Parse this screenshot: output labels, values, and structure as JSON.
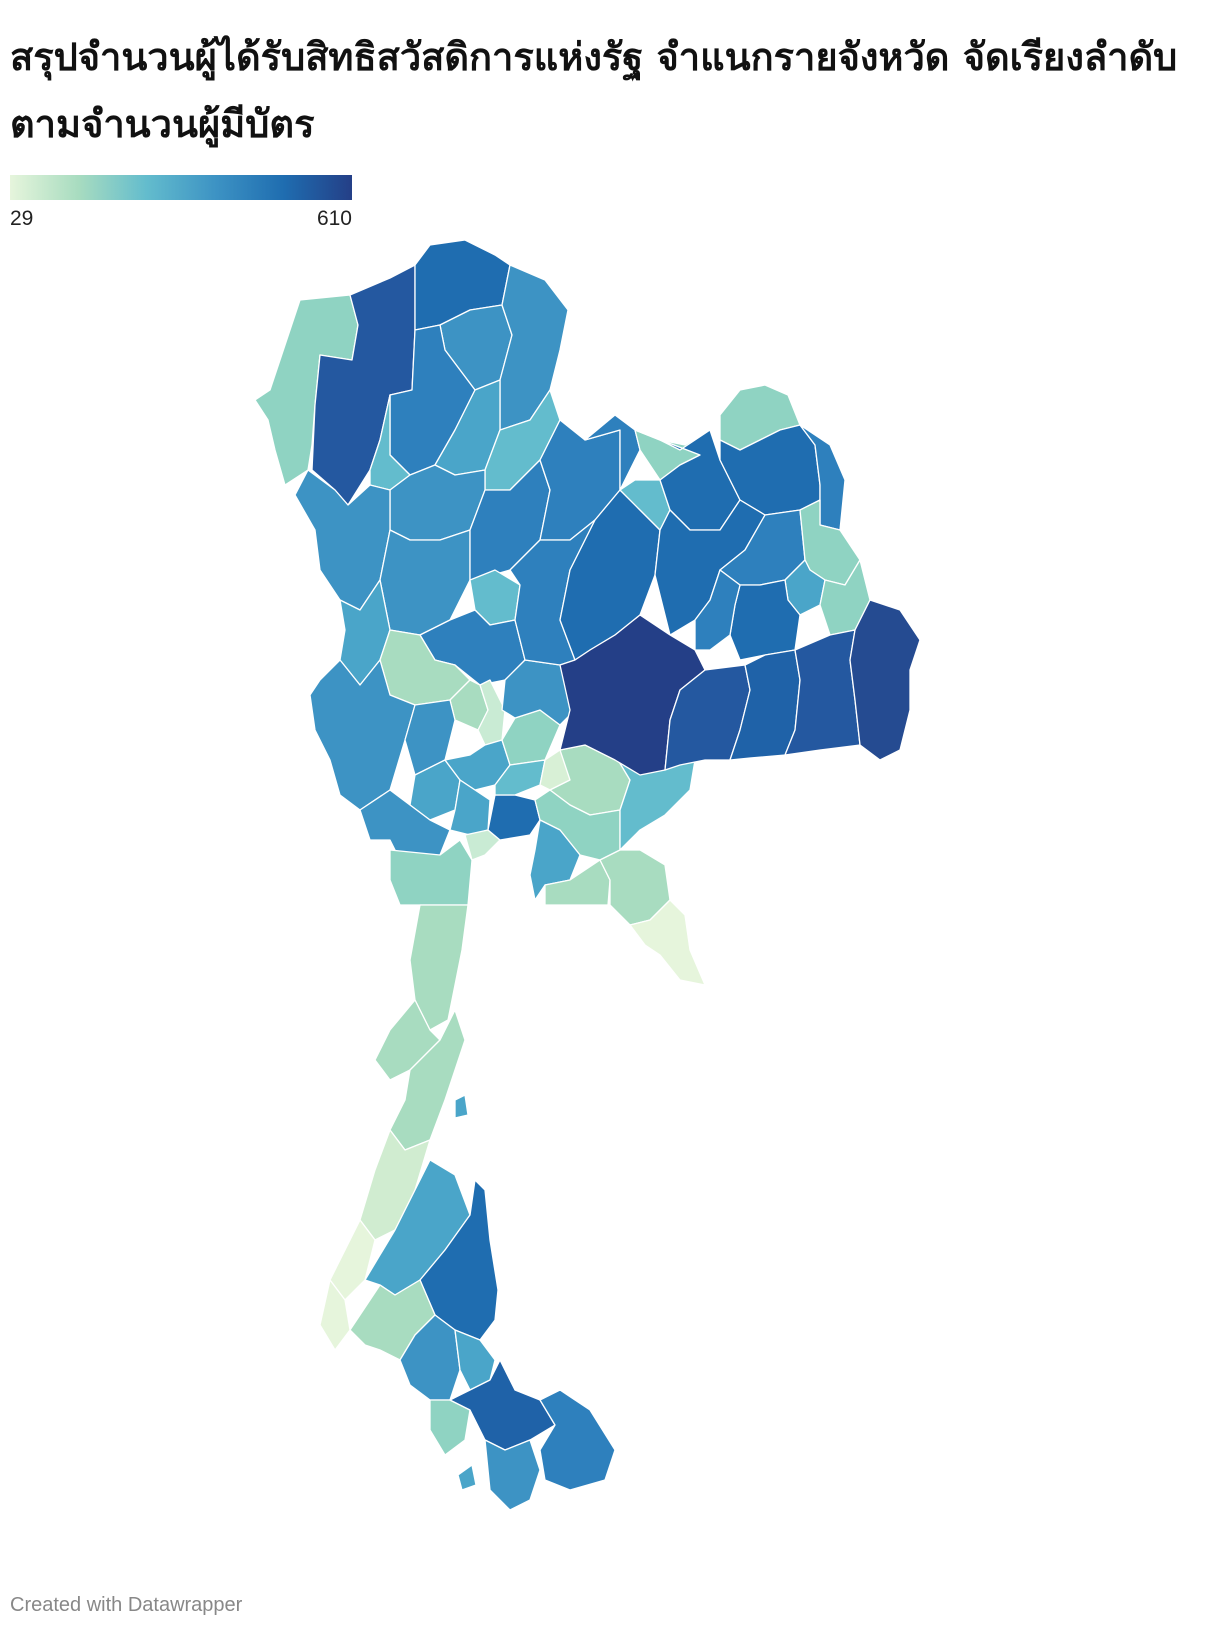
{
  "title": "สรุปจำนวนผู้ได้รับสิทธิสวัสดิการแห่งรัฐ จำแนกรายจังหวัด จัดเรียงลำดับตามจำนวนผู้มีบัตร",
  "legend": {
    "min_label": "29",
    "max_label": "610",
    "min": 29,
    "max": 610,
    "stops": [
      "#e6f5dc",
      "#a8dcc0",
      "#63bccd",
      "#3d93c4",
      "#1f6db0",
      "#243f87"
    ]
  },
  "footer": "Created with Datawrapper",
  "colors": {
    "background": "#ffffff",
    "title": "#111111",
    "footer": "#888888",
    "border": "#ffffff"
  },
  "chart_data": {
    "type": "choropleth",
    "scale": {
      "min": 29,
      "max": 610
    }
  }
}
